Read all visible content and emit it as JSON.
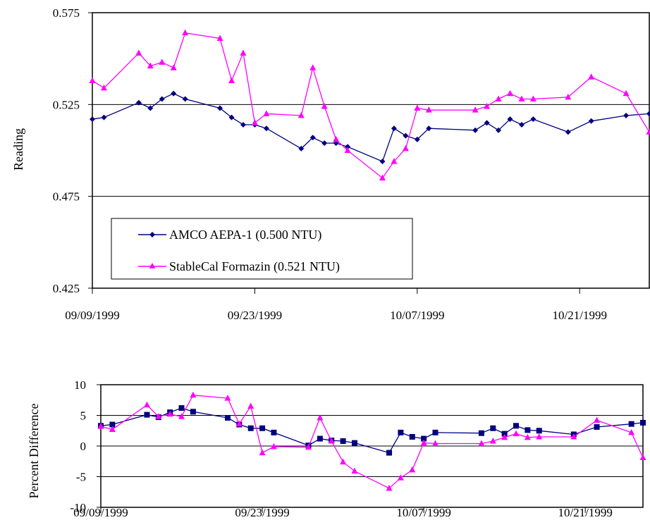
{
  "chart_data": [
    {
      "type": "line",
      "title": "",
      "ylabel": "Reading",
      "xlabel": "",
      "ylim": [
        0.425,
        0.575
      ],
      "yticks": [
        "0.425",
        "0.475",
        "0.525",
        "0.575"
      ],
      "xlim": [
        0,
        48
      ],
      "xticks": [
        {
          "x": 0,
          "label": "09/09/1999"
        },
        {
          "x": 14,
          "label": "09/23/1999"
        },
        {
          "x": 28,
          "label": "10/07/1999"
        },
        {
          "x": 42,
          "label": "10/21/1999"
        }
      ],
      "grid": "horizontal",
      "legend": "bottom-left",
      "series": [
        {
          "name": "AMCO AEPA-1 (0.500 NTU)",
          "color": "#00007f",
          "marker": "diamond",
          "x": [
            0,
            1,
            4,
            5,
            6,
            7,
            8,
            11,
            12,
            13,
            14,
            15,
            18,
            19,
            20,
            21,
            22,
            25,
            26,
            27,
            28,
            29,
            33,
            34,
            35,
            36,
            37,
            38,
            41,
            43,
            46,
            48
          ],
          "y": [
            0.517,
            0.518,
            0.526,
            0.523,
            0.528,
            0.531,
            0.528,
            0.523,
            0.518,
            0.514,
            0.514,
            0.512,
            0.501,
            0.507,
            0.504,
            0.504,
            0.502,
            0.494,
            0.512,
            0.508,
            0.506,
            0.512,
            0.511,
            0.515,
            0.511,
            0.517,
            0.514,
            0.517,
            0.51,
            0.516,
            0.519,
            0.52
          ]
        },
        {
          "name": "StableCal Formazin (0.521 NTU)",
          "color": "#ff00ff",
          "marker": "triangle",
          "x": [
            0,
            1,
            4,
            5,
            6,
            7,
            8,
            11,
            12,
            13,
            14,
            15,
            18,
            19,
            20,
            21,
            22,
            25,
            26,
            27,
            28,
            29,
            33,
            34,
            35,
            36,
            37,
            38,
            41,
            43,
            46,
            48
          ],
          "y": [
            0.538,
            0.534,
            0.553,
            0.546,
            0.548,
            0.545,
            0.564,
            0.561,
            0.538,
            0.553,
            0.515,
            0.52,
            0.519,
            0.545,
            0.524,
            0.506,
            0.5,
            0.485,
            0.494,
            0.501,
            0.523,
            0.522,
            0.522,
            0.524,
            0.528,
            0.531,
            0.528,
            0.528,
            0.529,
            0.54,
            0.531,
            0.51
          ]
        }
      ]
    },
    {
      "type": "line",
      "title": "",
      "ylabel": "Percent Difference",
      "xlabel": "",
      "ylim": [
        -10,
        10
      ],
      "yticks": [
        "-10",
        "-5",
        "0",
        "5",
        "10"
      ],
      "xlim": [
        0,
        47
      ],
      "xticks": [
        {
          "x": 0,
          "label": "09/09/1999"
        },
        {
          "x": 14,
          "label": "09/23/1999"
        },
        {
          "x": 28,
          "label": "10/07/1999"
        },
        {
          "x": 42,
          "label": "10/21/1999"
        }
      ],
      "grid": "horizontal",
      "series": [
        {
          "name": "",
          "color": "#00007f",
          "marker": "square",
          "x": [
            0,
            1,
            4,
            5,
            6,
            7,
            8,
            11,
            12,
            13,
            14,
            15,
            18,
            19,
            20,
            21,
            22,
            25,
            26,
            27,
            28,
            29,
            33,
            34,
            35,
            36,
            37,
            38,
            41,
            43,
            46,
            47
          ],
          "y": [
            3.3,
            3.5,
            5.1,
            4.7,
            5.5,
            6.2,
            5.6,
            4.6,
            3.5,
            2.9,
            2.9,
            2.2,
            0.1,
            1.2,
            0.9,
            0.8,
            0.5,
            -1.1,
            2.2,
            1.5,
            1.2,
            2.2,
            2.1,
            2.9,
            2.0,
            3.3,
            2.6,
            2.5,
            1.9,
            3.1,
            3.6,
            3.8
          ]
        },
        {
          "name": "",
          "color": "#ff00ff",
          "marker": "triangle",
          "x": [
            0,
            1,
            4,
            5,
            6,
            7,
            8,
            11,
            12,
            13,
            14,
            15,
            18,
            19,
            20,
            21,
            22,
            25,
            26,
            27,
            28,
            29,
            33,
            34,
            35,
            36,
            37,
            38,
            41,
            43,
            46,
            47
          ],
          "y": [
            3.2,
            2.7,
            6.7,
            4.8,
            5.2,
            4.8,
            8.3,
            7.8,
            3.6,
            6.5,
            -1.1,
            -0.1,
            -0.2,
            4.6,
            0.8,
            -2.6,
            -4.1,
            -6.9,
            -5.2,
            -3.9,
            0.5,
            0.4,
            0.4,
            0.8,
            1.4,
            2.0,
            1.4,
            1.5,
            1.5,
            4.2,
            2.2,
            -1.9
          ]
        }
      ]
    }
  ]
}
